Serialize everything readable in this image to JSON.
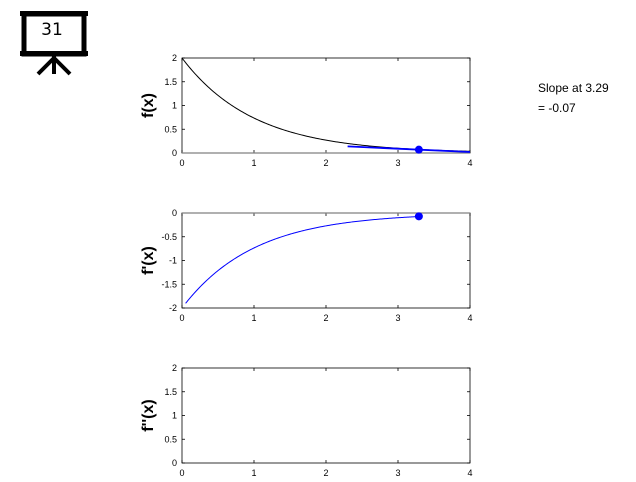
{
  "slide_badge": {
    "number": "31"
  },
  "annotation": {
    "line1": "Slope at 3.29",
    "line2": "= -0.07"
  },
  "colors": {
    "function": "#000000",
    "derivative": "#0000ff",
    "marker": "#0000ff",
    "zero_line": "#808080"
  },
  "icons": {
    "badge": "presentation-board-icon"
  },
  "chart_data": [
    {
      "type": "line",
      "name": "f",
      "title": "",
      "xlabel": "",
      "ylabel": "f(x)",
      "xlim": [
        0,
        4
      ],
      "ylim": [
        0,
        2
      ],
      "xticks": [
        "0",
        "1",
        "2",
        "3",
        "4"
      ],
      "yticks": [
        "0",
        "0.5",
        "1",
        "1.5",
        "2"
      ],
      "series": [
        {
          "function": "2*exp(-x)",
          "x_range": [
            0,
            4
          ],
          "color": "#000000"
        }
      ],
      "tangent": {
        "x": 3.29,
        "slope": -0.07,
        "x_range": [
          2.3,
          4
        ]
      },
      "marker": {
        "x": 3.29,
        "y": 0.07
      },
      "zero_line": true
    },
    {
      "type": "line",
      "name": "fprime",
      "title": "",
      "xlabel": "",
      "ylabel": "f'(x)",
      "xlim": [
        0,
        4
      ],
      "ylim": [
        -2,
        0
      ],
      "xticks": [
        "0",
        "1",
        "2",
        "3",
        "4"
      ],
      "yticks": [
        "-2",
        "-1.5",
        "-1",
        "-0.5",
        "0"
      ],
      "series": [
        {
          "function": "-2*exp(-x)",
          "x_range": [
            0.05,
            3.29
          ],
          "color": "#0000ff"
        }
      ],
      "marker": {
        "x": 3.29,
        "y": -0.07
      },
      "zero_line": true
    },
    {
      "type": "line",
      "name": "fdoubleprime",
      "title": "",
      "xlabel": "",
      "ylabel": "f''(x)",
      "xlim": [
        0,
        4
      ],
      "ylim": [
        0,
        2
      ],
      "xticks": [
        "0",
        "1",
        "2",
        "3",
        "4"
      ],
      "yticks": [
        "0",
        "0.5",
        "1",
        "1.5",
        "2"
      ],
      "series": [],
      "zero_line": false
    }
  ]
}
